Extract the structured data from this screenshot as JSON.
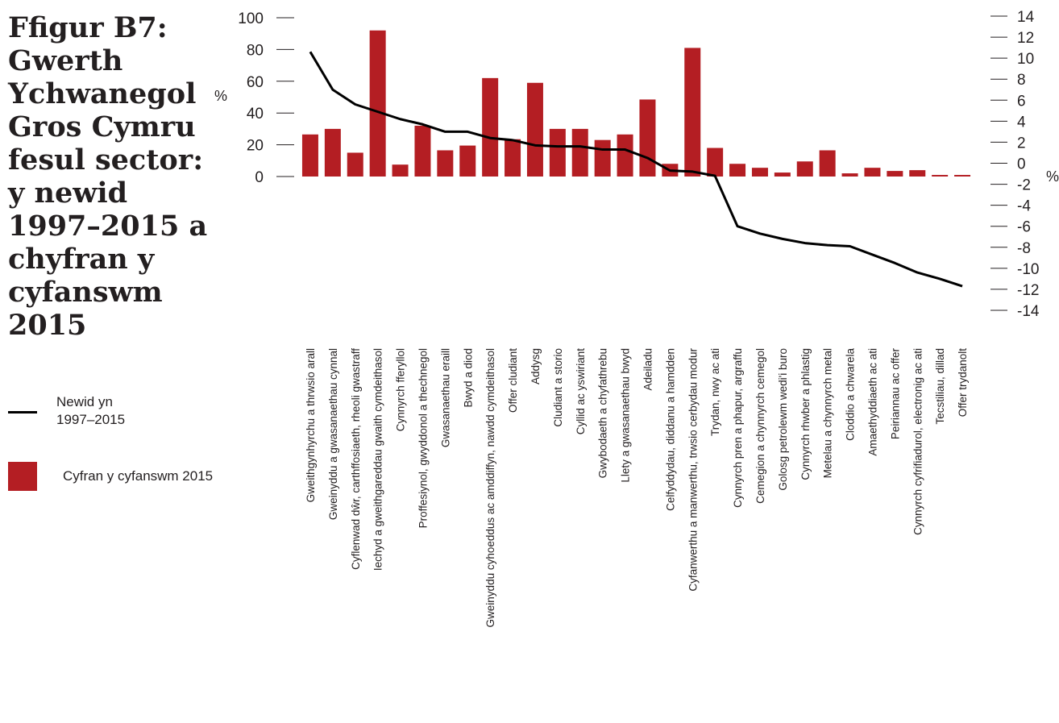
{
  "title": "Ffigur B7: Gwerth Ychwanegol Gros Cymru fesul sector: y newid 1997–2015 a chyfran y cyfanswm 2015",
  "colors": {
    "bar": "#b41e23",
    "line": "#000000",
    "text": "#231f20"
  },
  "legend": {
    "line_label": "Newid yn\n1997–2015",
    "bar_label": "Cyfran y cyfanswm 2015"
  },
  "chart_data": {
    "type": "bar",
    "left_axis": {
      "unit": "%",
      "min": 0,
      "max": 100,
      "ticks": [
        0,
        20,
        40,
        60,
        80,
        100
      ]
    },
    "right_axis": {
      "unit": "%",
      "min": -14,
      "max": 14,
      "ticks": [
        14,
        12,
        10,
        8,
        6,
        4,
        2,
        0,
        -2,
        -4,
        -6,
        -8,
        -10,
        -12,
        -14
      ]
    },
    "categories": [
      "Gweithgynhyrchu a thrwsio arall",
      "Gweinyddu a gwasanaethau cynnal",
      "Cyflenwad dŵr, carthffosiaeth, rheoli gwastraff",
      "Iechyd a gweithgareddau gwaith cymdeithasol",
      "Cynnyrch fferyllol",
      "Proffesiynol, gwyddonol a thechnegol",
      "Gwasanaethau eraill",
      "Bwyd a diod",
      "Gweinyddu cyhoeddus ac amddiffyn, nawdd cymdeithasol",
      "Offer cludiant",
      "Addysg",
      "Cludiant a storio",
      "Cyllid ac yswiriant",
      "Gwybodaeth a chyfathrebu",
      "Llety a gwasanaethau bwyd",
      "Adeiladu",
      "Celfyddydau, diddanu a hamdden",
      "Cyfanwerthu a manwerthu, trwsio cerbydau modur",
      "Trydan, nwy ac ati",
      "Cynnyrch pren a phapur, argraffu",
      "Cemegion a chynnyrch cemegol",
      "Golosg petrolewm wedi'i buro",
      "Cynnyrch rhwber a phlastig",
      "Metelau a chynnyrch metal",
      "Cloddio a chwarela",
      "Amaethyddiaeth ac ati",
      "Peiriannau ac offer",
      "Cynnyrch cyfrifiadurol, electronig ac ati",
      "Tecstiliau, dillad",
      "Offer trydanolt"
    ],
    "series": [
      {
        "name": "Cyfran y cyfanswm 2015",
        "type": "bar",
        "axis": "left",
        "values": [
          26.5,
          30,
          15,
          92,
          7.5,
          32,
          16.5,
          19.5,
          62,
          23.5,
          59,
          30,
          30,
          23,
          26.5,
          48.5,
          8,
          81,
          18,
          8,
          5.5,
          2.5,
          9.5,
          16.5,
          2,
          5.5,
          3.5,
          4,
          1,
          1
        ]
      },
      {
        "name": "Newid yn 1997–2015",
        "type": "line",
        "axis": "right",
        "values": [
          10.6,
          7.0,
          5.6,
          4.9,
          4.2,
          3.7,
          3.0,
          3.0,
          2.4,
          2.2,
          1.7,
          1.6,
          1.6,
          1.3,
          1.3,
          0.5,
          -0.7,
          -0.8,
          -1.2,
          -6.0,
          -6.7,
          -7.2,
          -7.6,
          -7.8,
          -7.9,
          -8.7,
          -9.5,
          -10.4,
          -11.0,
          -11.7
        ]
      }
    ]
  }
}
